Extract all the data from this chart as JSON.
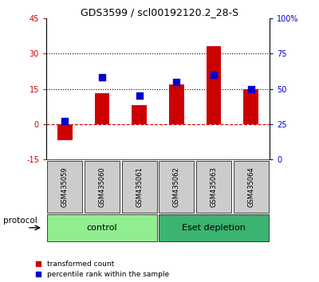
{
  "title": "GDS3599 / scl00192120.2_28-S",
  "samples": [
    "GSM435059",
    "GSM435060",
    "GSM435061",
    "GSM435062",
    "GSM435063",
    "GSM435064"
  ],
  "red_bars": [
    -7.0,
    13.0,
    8.0,
    17.0,
    33.0,
    15.0
  ],
  "blue_dots": [
    27.0,
    58.0,
    45.0,
    55.0,
    60.0,
    50.0
  ],
  "ylim_left": [
    -15,
    45
  ],
  "ylim_right": [
    0,
    100
  ],
  "yticks_left": [
    -15,
    0,
    15,
    30,
    45
  ],
  "yticks_right": [
    0,
    25,
    50,
    75,
    100
  ],
  "ytick_labels_left": [
    "-15",
    "0",
    "15",
    "30",
    "45"
  ],
  "ytick_labels_right": [
    "0",
    "25",
    "50",
    "75",
    "100%"
  ],
  "hlines_dotted": [
    15,
    30
  ],
  "hline_dashed_red": 0,
  "protocols": [
    {
      "label": "control",
      "samples": [
        0,
        1,
        2
      ],
      "color": "#90ee90"
    },
    {
      "label": "Eset depletion",
      "samples": [
        3,
        4,
        5
      ],
      "color": "#3cb371"
    }
  ],
  "protocol_label": "protocol",
  "legend_items": [
    {
      "label": "transformed count",
      "color": "#cc0000",
      "marker": "s"
    },
    {
      "label": "percentile rank within the sample",
      "color": "#0000cc",
      "marker": "s"
    }
  ],
  "bar_color": "#cc0000",
  "dot_color": "#0000cc",
  "tick_color_left": "#cc0000",
  "tick_color_right": "#0000cc",
  "background_color": "#ffffff",
  "plot_bg": "#ffffff",
  "sample_box_color": "#cccccc",
  "figsize": [
    4.0,
    3.54
  ],
  "dpi": 100
}
